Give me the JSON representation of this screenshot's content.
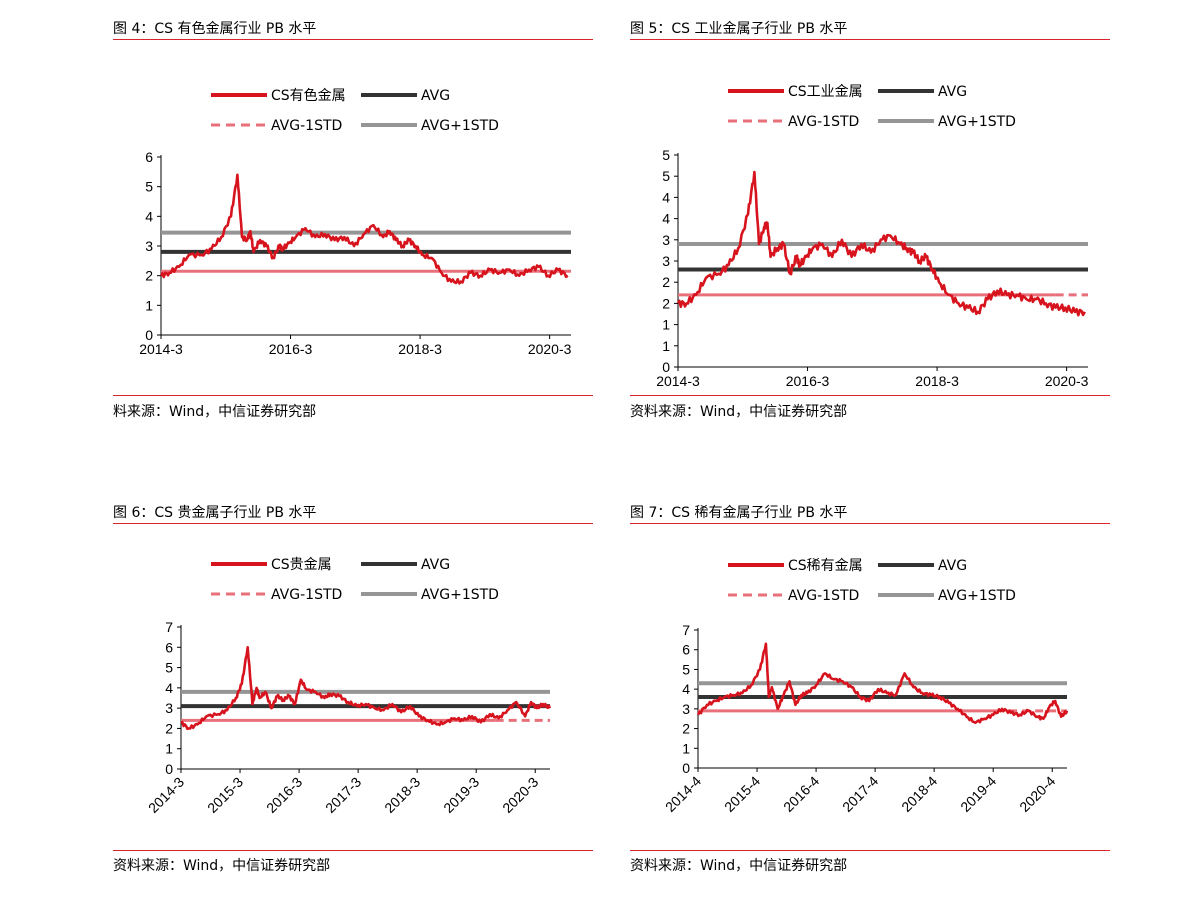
{
  "panels": [
    {
      "title": "图 4：CS 有色金属行业 PB 水平",
      "source": "料来源：Wind，中信证券研究部",
      "legend": {
        "main": "CS有色金属",
        "avg": "AVG",
        "minus": "AVG-1STD",
        "plus": "AVG+1STD"
      },
      "colors": {
        "main": "#d7141e",
        "avg": "#333333",
        "minus": "#e8707a",
        "plus": "#959595"
      }
    },
    {
      "title": "图 5：CS 工业金属子行业 PB 水平",
      "source": "资料来源：Wind，中信证券研究部",
      "legend": {
        "main": "CS工业金属",
        "avg": "AVG",
        "minus": "AVG-1STD",
        "plus": "AVG+1STD"
      },
      "colors": {
        "main": "#d7141e",
        "avg": "#333333",
        "minus": "#e8707a",
        "plus": "#959595"
      }
    },
    {
      "title": "图 6：CS 贵金属子行业 PB 水平",
      "source": "资料来源：Wind，中信证券研究部",
      "legend": {
        "main": "CS贵金属",
        "avg": "AVG",
        "minus": "AVG-1STD",
        "plus": "AVG+1STD"
      },
      "colors": {
        "main": "#d7141e",
        "avg": "#333333",
        "minus": "#e8707a",
        "plus": "#959595"
      }
    },
    {
      "title": "图 7：CS 稀有金属子行业 PB 水平",
      "source": "资料来源：Wind，中信证券研究部",
      "legend": {
        "main": "CS稀有金属",
        "avg": "AVG",
        "minus": "AVG-1STD",
        "plus": "AVG+1STD"
      },
      "colors": {
        "main": "#d7141e",
        "avg": "#333333",
        "minus": "#e8707a",
        "plus": "#959595"
      }
    }
  ],
  "chart_data": [
    {
      "type": "line",
      "ylim": [
        0,
        6
      ],
      "yticks": [
        "0",
        "1",
        "2",
        "3",
        "4",
        "5",
        "6"
      ],
      "xlim": [
        2014.17,
        2020.5
      ],
      "xticks": [
        {
          "v": 2014.17,
          "label": "2014-3"
        },
        {
          "v": 2016.17,
          "label": "2016-3"
        },
        {
          "v": 2018.17,
          "label": "2018-3"
        },
        {
          "v": 2020.17,
          "label": "2020-3"
        }
      ],
      "xlabel_rotate": 0,
      "avg": 2.8,
      "avg_minus_std": 2.15,
      "avg_plus_std": 3.45,
      "minus_dashed_from": null,
      "series": [
        {
          "name": "CS有色金属",
          "x": [
            2014.17,
            2014.3,
            2014.45,
            2014.6,
            2014.8,
            2014.95,
            2015.1,
            2015.25,
            2015.35,
            2015.42,
            2015.5,
            2015.55,
            2015.6,
            2015.7,
            2015.8,
            2015.9,
            2016.0,
            2016.05,
            2016.15,
            2016.25,
            2016.4,
            2016.55,
            2016.7,
            2016.85,
            2017.0,
            2017.15,
            2017.3,
            2017.45,
            2017.6,
            2017.7,
            2017.8,
            2017.9,
            2018.0,
            2018.1,
            2018.2,
            2018.35,
            2018.5,
            2018.65,
            2018.8,
            2018.95,
            2019.1,
            2019.25,
            2019.4,
            2019.55,
            2019.7,
            2019.85,
            2020.0,
            2020.15,
            2020.3,
            2020.45
          ],
          "values": [
            2.0,
            2.1,
            2.3,
            2.7,
            2.7,
            2.9,
            3.3,
            4.0,
            5.4,
            3.3,
            3.2,
            3.5,
            2.8,
            3.2,
            3.0,
            2.6,
            3.0,
            2.9,
            3.1,
            3.3,
            3.6,
            3.3,
            3.4,
            3.2,
            3.3,
            3.0,
            3.4,
            3.7,
            3.3,
            3.5,
            3.2,
            3.0,
            3.2,
            3.0,
            2.7,
            2.6,
            2.1,
            1.8,
            1.8,
            2.1,
            2.0,
            2.2,
            2.1,
            2.2,
            2.0,
            2.2,
            2.3,
            2.0,
            2.2,
            2.0
          ]
        }
      ]
    },
    {
      "type": "line",
      "ylim": [
        0,
        5
      ],
      "yticks": [
        "0",
        "1",
        "1",
        "2",
        "2",
        "3",
        "3",
        "4",
        "4",
        "5",
        "5"
      ],
      "ytick_step": 0.5,
      "xlim": [
        2014.17,
        2020.5
      ],
      "xticks": [
        {
          "v": 2014.17,
          "label": "2014-3"
        },
        {
          "v": 2016.17,
          "label": "2016-3"
        },
        {
          "v": 2018.17,
          "label": "2018-3"
        },
        {
          "v": 2020.17,
          "label": "2020-3"
        }
      ],
      "xlabel_rotate": 0,
      "avg": 2.3,
      "avg_minus_std": 1.7,
      "avg_plus_std": 2.9,
      "minus_dashed_from": 2020.0,
      "series": [
        {
          "name": "CS工业金属",
          "x": [
            2014.17,
            2014.3,
            2014.45,
            2014.6,
            2014.8,
            2014.95,
            2015.1,
            2015.25,
            2015.35,
            2015.42,
            2015.5,
            2015.55,
            2015.6,
            2015.7,
            2015.8,
            2015.9,
            2016.0,
            2016.05,
            2016.15,
            2016.25,
            2016.4,
            2016.55,
            2016.7,
            2016.85,
            2017.0,
            2017.15,
            2017.3,
            2017.45,
            2017.6,
            2017.7,
            2017.8,
            2017.9,
            2018.0,
            2018.1,
            2018.2,
            2018.35,
            2018.5,
            2018.65,
            2018.8,
            2018.95,
            2019.1,
            2019.25,
            2019.4,
            2019.55,
            2019.7,
            2019.85,
            2020.0,
            2020.15,
            2020.3,
            2020.45
          ],
          "values": [
            1.5,
            1.5,
            1.7,
            2.1,
            2.2,
            2.4,
            2.8,
            3.6,
            4.6,
            2.9,
            3.3,
            3.4,
            2.6,
            2.8,
            2.9,
            2.2,
            2.6,
            2.4,
            2.6,
            2.8,
            2.9,
            2.6,
            3.0,
            2.6,
            2.9,
            2.7,
            3.0,
            3.1,
            2.9,
            2.8,
            2.7,
            2.5,
            2.6,
            2.3,
            2.0,
            1.7,
            1.5,
            1.4,
            1.3,
            1.6,
            1.8,
            1.7,
            1.7,
            1.6,
            1.6,
            1.5,
            1.4,
            1.4,
            1.3,
            1.3
          ]
        }
      ]
    },
    {
      "type": "line",
      "ylim": [
        0,
        7
      ],
      "yticks": [
        "0",
        "1",
        "2",
        "3",
        "4",
        "5",
        "6",
        "7"
      ],
      "xlim": [
        2014.17,
        2020.42
      ],
      "xticks": [
        {
          "v": 2014.17,
          "label": "2014-3"
        },
        {
          "v": 2015.17,
          "label": "2015-3"
        },
        {
          "v": 2016.17,
          "label": "2016-3"
        },
        {
          "v": 2017.17,
          "label": "2017-3"
        },
        {
          "v": 2018.17,
          "label": "2018-3"
        },
        {
          "v": 2019.17,
          "label": "2019-3"
        },
        {
          "v": 2020.17,
          "label": "2020-3"
        }
      ],
      "xlabel_rotate": -45,
      "avg": 3.1,
      "avg_minus_std": 2.4,
      "avg_plus_std": 3.8,
      "minus_dashed_from": 2019.5,
      "series": [
        {
          "name": "CS贵金属",
          "x": [
            2014.17,
            2014.3,
            2014.45,
            2014.6,
            2014.8,
            2014.95,
            2015.1,
            2015.2,
            2015.3,
            2015.38,
            2015.45,
            2015.5,
            2015.6,
            2015.7,
            2015.8,
            2015.9,
            2016.0,
            2016.1,
            2016.2,
            2016.3,
            2016.45,
            2016.6,
            2016.7,
            2016.85,
            2017.0,
            2017.15,
            2017.3,
            2017.45,
            2017.6,
            2017.75,
            2017.9,
            2018.05,
            2018.2,
            2018.35,
            2018.5,
            2018.65,
            2018.8,
            2018.95,
            2019.1,
            2019.25,
            2019.4,
            2019.55,
            2019.7,
            2019.85,
            2020.0,
            2020.1,
            2020.2,
            2020.3,
            2020.42
          ],
          "values": [
            2.3,
            2.0,
            2.2,
            2.6,
            2.7,
            2.9,
            3.5,
            4.2,
            6.0,
            3.2,
            4.0,
            3.5,
            3.8,
            3.0,
            3.6,
            3.4,
            3.6,
            3.2,
            4.4,
            3.9,
            3.8,
            3.5,
            3.7,
            3.6,
            3.3,
            3.1,
            3.2,
            3.0,
            2.9,
            3.2,
            2.8,
            3.1,
            2.6,
            2.4,
            2.2,
            2.3,
            2.5,
            2.4,
            2.6,
            2.3,
            2.7,
            2.5,
            2.9,
            3.3,
            2.6,
            3.3,
            3.0,
            3.2,
            3.0
          ]
        }
      ]
    },
    {
      "type": "line",
      "ylim": [
        0,
        7
      ],
      "yticks": [
        "0",
        "1",
        "2",
        "3",
        "4",
        "5",
        "6",
        "7"
      ],
      "xlim": [
        2014.25,
        2020.5
      ],
      "xticks": [
        {
          "v": 2014.25,
          "label": "2014-4"
        },
        {
          "v": 2015.25,
          "label": "2015-4"
        },
        {
          "v": 2016.25,
          "label": "2016-4"
        },
        {
          "v": 2017.25,
          "label": "2017-4"
        },
        {
          "v": 2018.25,
          "label": "2018-4"
        },
        {
          "v": 2019.25,
          "label": "2019-4"
        },
        {
          "v": 2020.25,
          "label": "2020-4"
        }
      ],
      "xlabel_rotate": -45,
      "avg": 3.6,
      "avg_minus_std": 2.9,
      "avg_plus_std": 4.3,
      "minus_dashed_from": 2019.3,
      "series": [
        {
          "name": "CS稀有金属",
          "x": [
            2014.25,
            2014.4,
            2014.55,
            2014.7,
            2014.85,
            2015.0,
            2015.15,
            2015.3,
            2015.4,
            2015.45,
            2015.5,
            2015.6,
            2015.7,
            2015.8,
            2015.9,
            2016.0,
            2016.1,
            2016.25,
            2016.4,
            2016.55,
            2016.7,
            2016.85,
            2017.0,
            2017.15,
            2017.3,
            2017.45,
            2017.6,
            2017.75,
            2017.9,
            2018.05,
            2018.2,
            2018.35,
            2018.5,
            2018.65,
            2018.8,
            2018.95,
            2019.1,
            2019.25,
            2019.4,
            2019.55,
            2019.7,
            2019.85,
            2020.0,
            2020.1,
            2020.2,
            2020.3,
            2020.4,
            2020.5
          ],
          "values": [
            2.7,
            3.2,
            3.4,
            3.6,
            3.7,
            3.8,
            4.2,
            5.0,
            6.3,
            3.6,
            4.1,
            3.0,
            3.7,
            4.4,
            3.2,
            3.7,
            3.8,
            4.2,
            4.8,
            4.5,
            4.4,
            4.1,
            3.6,
            3.4,
            4.0,
            3.8,
            3.7,
            4.8,
            4.1,
            3.8,
            3.7,
            3.6,
            3.3,
            3.0,
            2.6,
            2.3,
            2.5,
            2.7,
            3.0,
            2.8,
            2.7,
            2.9,
            2.6,
            2.5,
            3.1,
            3.4,
            2.6,
            2.9
          ]
        }
      ]
    }
  ]
}
